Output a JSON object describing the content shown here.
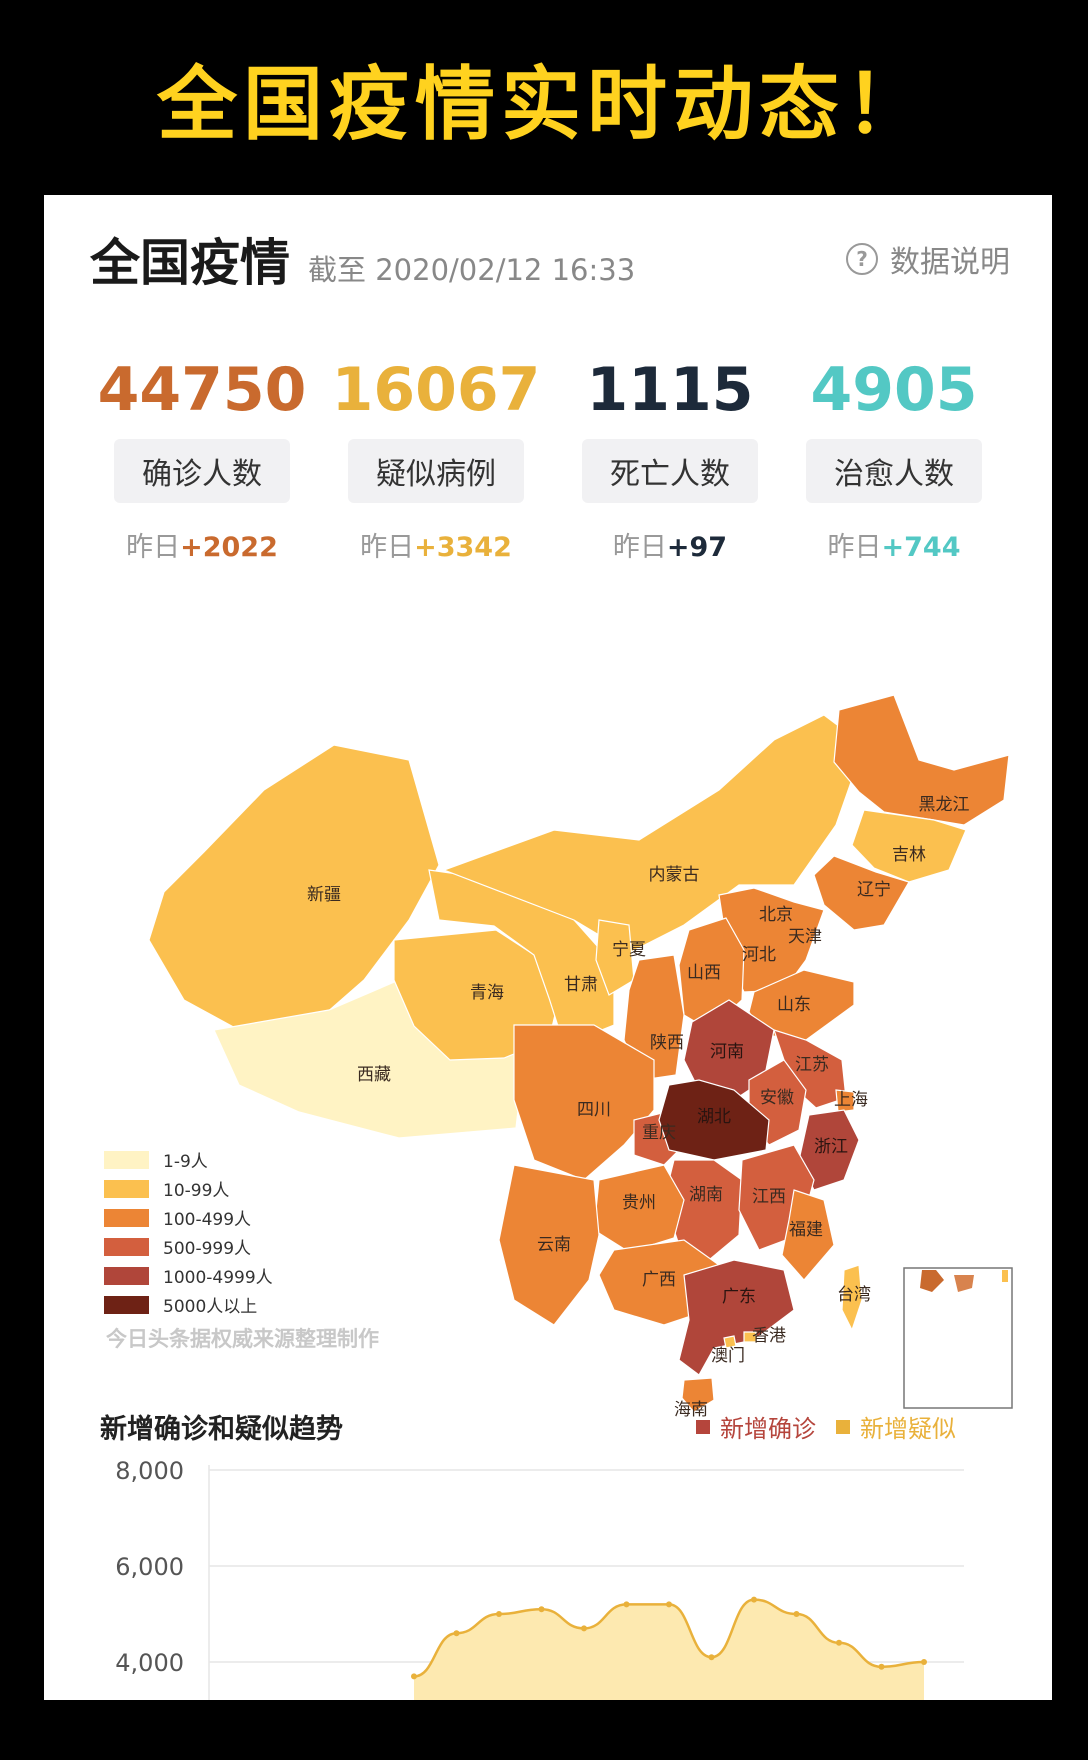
{
  "banner": "全国疫情实时动态！",
  "header": {
    "title": "全国疫情",
    "as_of": "截至 2020/02/12 16:33",
    "help_label": "数据说明"
  },
  "stats": [
    {
      "value": "44750",
      "label": "确诊人数",
      "delta_prefix": "昨日",
      "delta": "+2022",
      "color": "#c96a2e"
    },
    {
      "value": "16067",
      "label": "疑似病例",
      "delta_prefix": "昨日",
      "delta": "+3342",
      "color": "#e9b13b"
    },
    {
      "value": "1115",
      "label": "死亡人数",
      "delta_prefix": "昨日",
      "delta": "+97",
      "color": "#1d2a3a"
    },
    {
      "value": "4905",
      "label": "治愈人数",
      "delta_prefix": "昨日",
      "delta": "+744",
      "color": "#53c8c4"
    }
  ],
  "map": {
    "provinces": [
      {
        "name": "新疆",
        "level": 1
      },
      {
        "name": "西藏",
        "level": 0
      },
      {
        "name": "青海",
        "level": 1
      },
      {
        "name": "甘肃",
        "level": 1
      },
      {
        "name": "内蒙古",
        "level": 1
      },
      {
        "name": "宁夏",
        "level": 1
      },
      {
        "name": "黑龙江",
        "level": 2
      },
      {
        "name": "吉林",
        "level": 1
      },
      {
        "name": "辽宁",
        "level": 2
      },
      {
        "name": "北京",
        "level": 2
      },
      {
        "name": "天津",
        "level": 2
      },
      {
        "name": "河北",
        "level": 2
      },
      {
        "name": "山西",
        "level": 2
      },
      {
        "name": "山东",
        "level": 2
      },
      {
        "name": "陕西",
        "level": 2
      },
      {
        "name": "河南",
        "level": 4
      },
      {
        "name": "江苏",
        "level": 3
      },
      {
        "name": "安徽",
        "level": 3
      },
      {
        "name": "上海",
        "level": 2
      },
      {
        "name": "四川",
        "level": 2
      },
      {
        "name": "重庆",
        "level": 3
      },
      {
        "name": "湖北",
        "level": 5
      },
      {
        "name": "浙江",
        "level": 4
      },
      {
        "name": "湖南",
        "level": 3
      },
      {
        "name": "江西",
        "level": 3
      },
      {
        "name": "贵州",
        "level": 2
      },
      {
        "name": "福建",
        "level": 2
      },
      {
        "name": "云南",
        "level": 2
      },
      {
        "name": "广西",
        "level": 2
      },
      {
        "name": "广东",
        "level": 4
      },
      {
        "name": "台湾",
        "level": 1
      },
      {
        "name": "澳门",
        "level": 1
      },
      {
        "name": "香港",
        "level": 1
      },
      {
        "name": "海南",
        "level": 2
      }
    ],
    "legend": [
      {
        "label": "1-9人",
        "color": "#fff3c4"
      },
      {
        "label": "10-99人",
        "color": "#fbc04f"
      },
      {
        "label": "100-499人",
        "color": "#ec8535"
      },
      {
        "label": "500-999人",
        "color": "#d35f3e"
      },
      {
        "label": "1000-4999人",
        "color": "#b0463a"
      },
      {
        "label": "5000人以上",
        "color": "#6e2215"
      }
    ],
    "source": "今日头条据权威来源整理制作"
  },
  "trend": {
    "title": "新增确诊和疑似趋势",
    "legend_confirmed": "新增确诊",
    "legend_suspected": "新增疑似",
    "confirmed_color": "#b5453c",
    "suspected_color": "#e9b13b"
  },
  "chart_data": {
    "type": "area",
    "title": "新增确诊和疑似趋势",
    "y_ticks": [
      "8,000",
      "6,000",
      "4,000"
    ],
    "ylim": [
      4000,
      8000
    ],
    "series": [
      {
        "name": "新增疑似",
        "values": [
          3700,
          4600,
          5000,
          5100,
          4700,
          5200,
          5200,
          4100,
          5300,
          5000,
          4400,
          3900,
          4000
        ]
      },
      {
        "name": "新增确诊",
        "values": []
      }
    ]
  }
}
